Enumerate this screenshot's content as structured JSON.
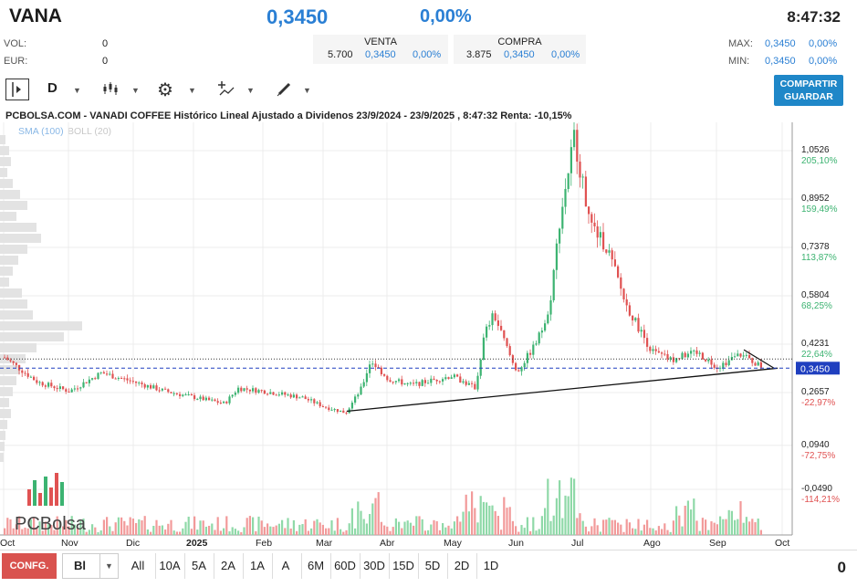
{
  "header": {
    "ticker": "VANA",
    "last": "0,3450",
    "change": "0,00%",
    "time": "8:47:32",
    "vol_label": "VOL:",
    "vol_value": "0",
    "eur_label": "EUR:",
    "eur_value": "0",
    "sell": {
      "header": "VENTA",
      "qty": "5.700",
      "price": "0,3450",
      "pct": "0,00%"
    },
    "buy": {
      "header": "COMPRA",
      "qty": "3.875",
      "price": "0,3450",
      "pct": "0,00%"
    },
    "max_label": "MAX:",
    "max_price": "0,3450",
    "max_pct": "0,00%",
    "min_label": "MIN:",
    "min_price": "0,3450",
    "min_pct": "0,00%"
  },
  "toolbar": {
    "period": "D",
    "share_line1": "COMPARTIR",
    "share_line2": "GUARDAR"
  },
  "chart_title": "PCBOLSA.COM - VANADI COFFEE Histórico Lineal Ajustado a Dividenos 23/9/2024 - 23/9/2025 , 8:47:32 Renta: -10,15%",
  "indicators": {
    "sma": "SMA (100)",
    "boll": "BOLL (20)"
  },
  "logo_text": "PCBolsa",
  "bottom": {
    "conf": "CONFG.",
    "type": "Bl",
    "ranges": [
      "All",
      "10A",
      "5A",
      "2A",
      "1A",
      "A",
      "6M",
      "60D",
      "30D",
      "15D",
      "5D",
      "2D",
      "1D"
    ],
    "right_value": "0"
  },
  "colors": {
    "up": "#3cb371",
    "down": "#e05252",
    "accent": "#2a7fd4"
  },
  "chart_data": {
    "type": "candlestick",
    "title": "PCBOLSA.COM - VANADI COFFEE Histórico Lineal Ajustado a Dividenos 23/9/2024 - 23/9/2025 , 8:47:32 Renta: -10,15%",
    "x_tick_labels": [
      "Oct",
      "Nov",
      "Dic",
      "2025",
      "Feb",
      "Mar",
      "Abr",
      "May",
      "Jun",
      "Jul",
      "Ago",
      "Sep",
      "Oct"
    ],
    "y_ticks": [
      {
        "price": "1,0526",
        "pct": "205,10%"
      },
      {
        "price": "0,8952",
        "pct": "159,49%"
      },
      {
        "price": "0,7378",
        "pct": "113,87%"
      },
      {
        "price": "0,5804",
        "pct": "68,25%"
      },
      {
        "price": "0,4231",
        "pct": "22,64%"
      },
      {
        "price": "0,2657",
        "pct": "-22,97%"
      },
      {
        "price": "0,0940",
        "pct": "-72,75%"
      },
      {
        "price": "-0,0490",
        "pct": "-114,21%"
      }
    ],
    "last_price_label": "0,3450",
    "ylim": [
      -0.05,
      1.15
    ],
    "monthly_close_estimates": [
      {
        "month": "Oct",
        "close": 0.37
      },
      {
        "month": "Nov",
        "close": 0.28
      },
      {
        "month": "Dic",
        "close": 0.29
      },
      {
        "month": "2025",
        "close": 0.24
      },
      {
        "month": "Feb",
        "close": 0.24
      },
      {
        "month": "Mar",
        "close": 0.2
      },
      {
        "month": "Abr",
        "close": 0.3
      },
      {
        "month": "May",
        "close": 0.31
      },
      {
        "month": "Jun",
        "close": 0.7
      },
      {
        "month": "Jul",
        "close": 0.75
      },
      {
        "month": "Ago",
        "close": 0.35
      },
      {
        "month": "Sep",
        "close": 0.345
      }
    ],
    "high": 1.12,
    "low": 0.19,
    "grid": true,
    "volume_panel": true
  }
}
